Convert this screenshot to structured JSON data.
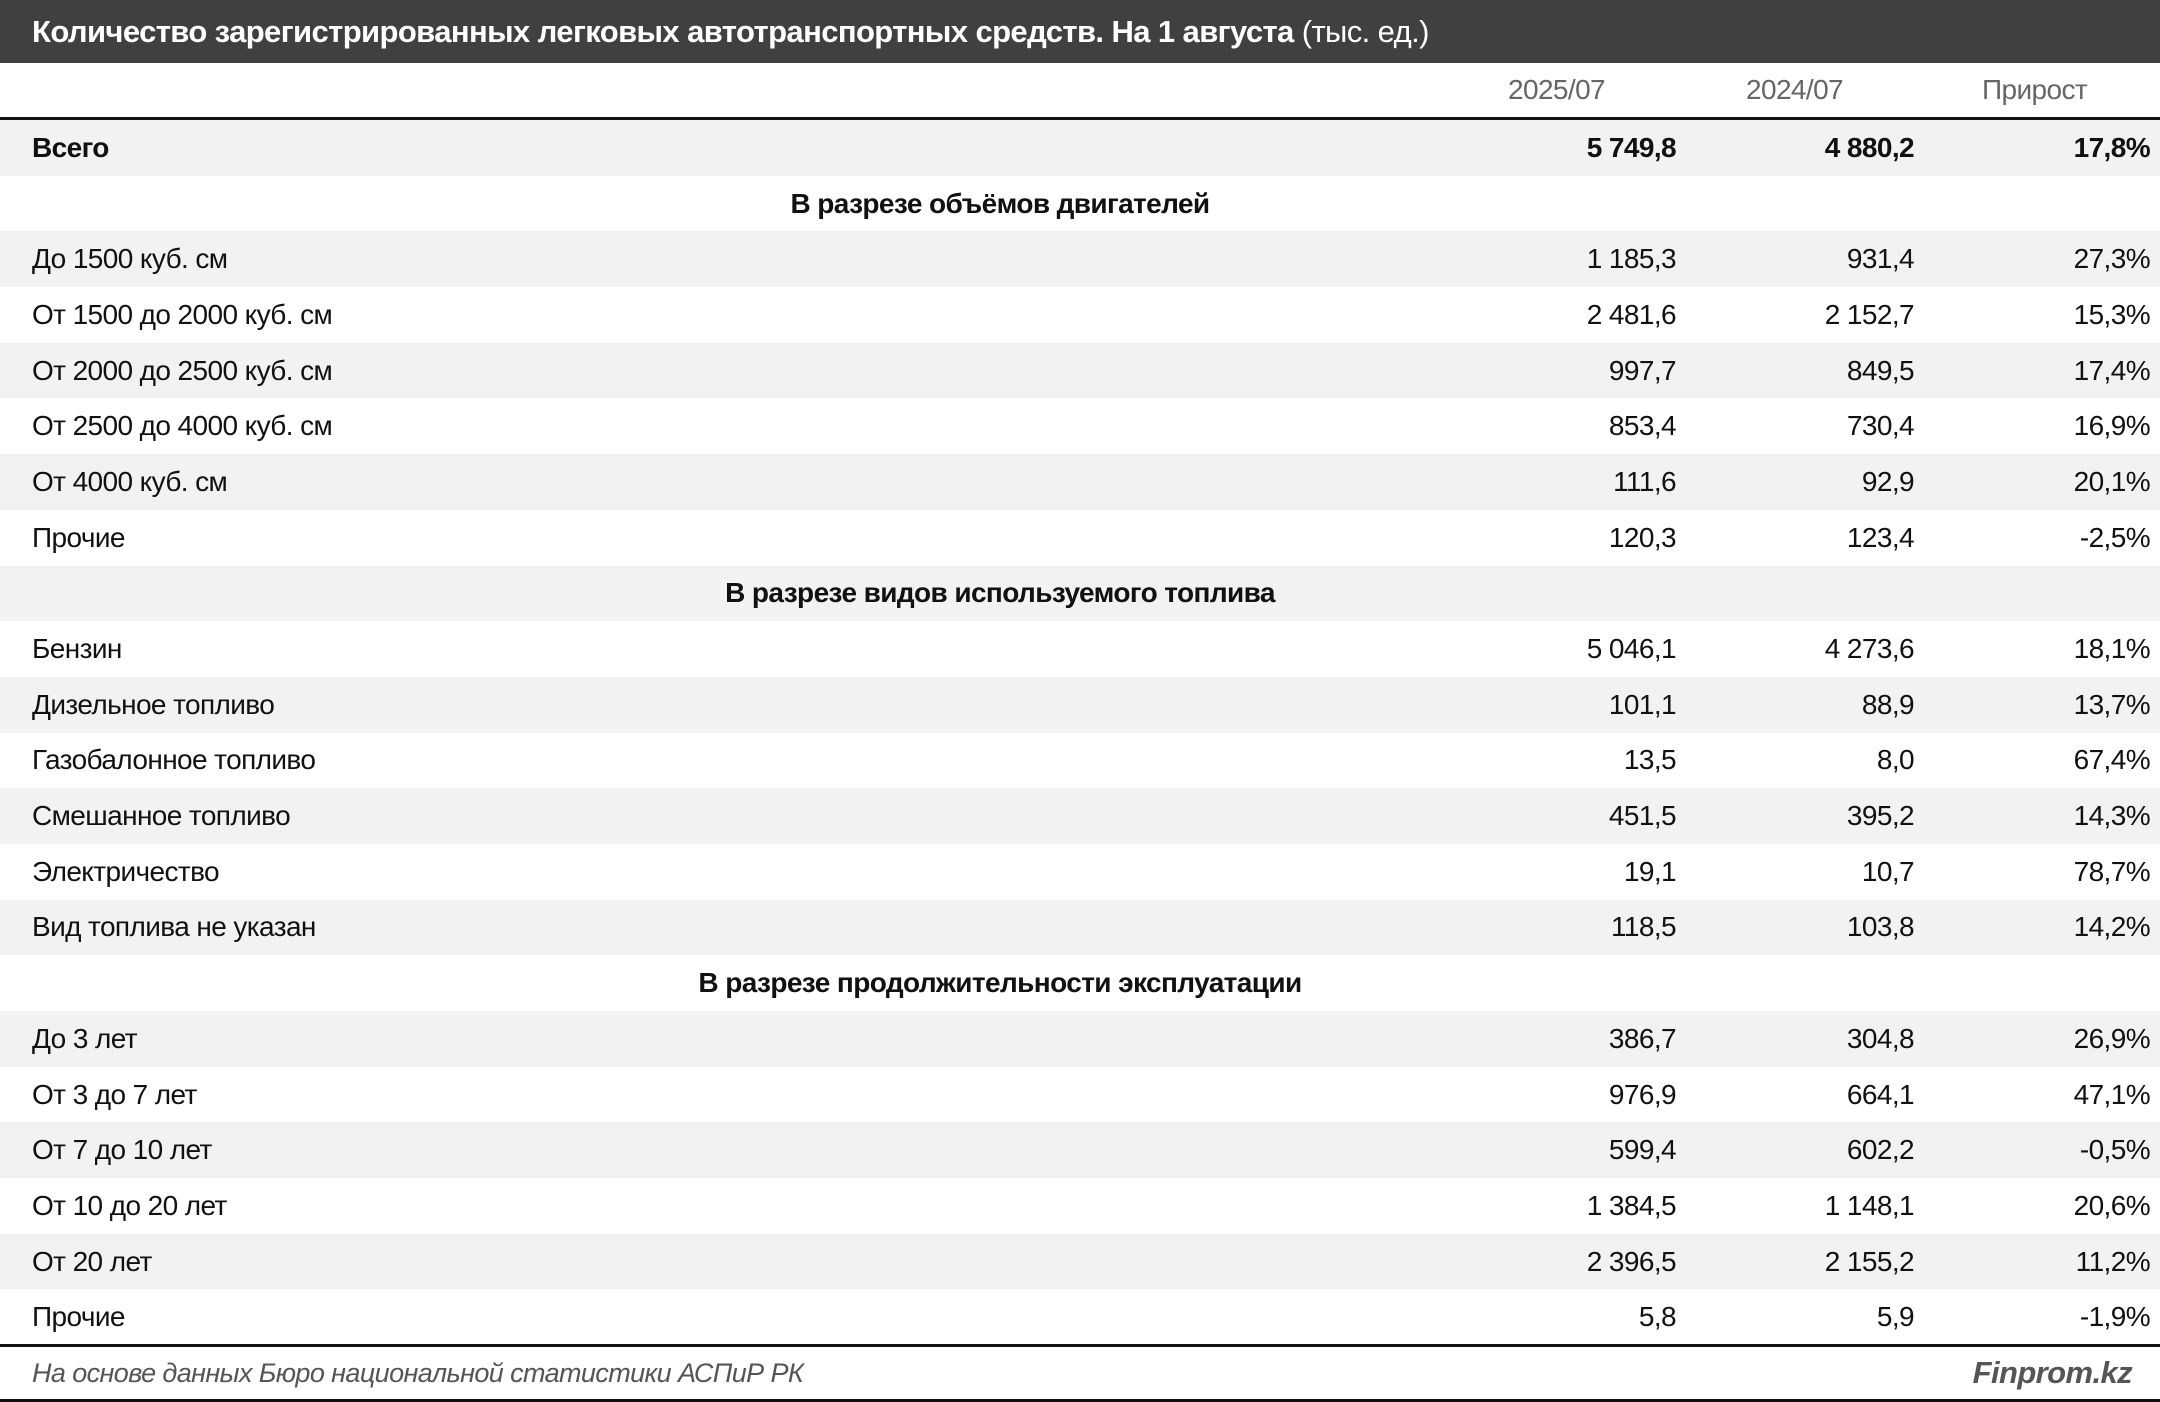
{
  "title": {
    "main": "Количество зарегистрированных легковых автотранспортных средств. На 1 августа",
    "unit": " (тыс. ед.)"
  },
  "columns": [
    "2025/07",
    "2024/07",
    "Прирост"
  ],
  "total": {
    "label": "Всего",
    "v2025": "5 749,8",
    "v2024": "4 880,2",
    "growth": "17,8%"
  },
  "sections": [
    {
      "title": "В разрезе объёмов двигателей",
      "rows": [
        {
          "label": "До 1500 куб. см",
          "v2025": "1 185,3",
          "v2024": "931,4",
          "growth": "27,3%"
        },
        {
          "label": "От 1500 до 2000 куб. см",
          "v2025": "2 481,6",
          "v2024": "2 152,7",
          "growth": "15,3%"
        },
        {
          "label": "От 2000 до 2500 куб. см",
          "v2025": "997,7",
          "v2024": "849,5",
          "growth": "17,4%"
        },
        {
          "label": "От 2500 до 4000 куб. см",
          "v2025": "853,4",
          "v2024": "730,4",
          "growth": "16,9%"
        },
        {
          "label": "От 4000 куб. см",
          "v2025": "111,6",
          "v2024": "92,9",
          "growth": "20,1%"
        },
        {
          "label": "Прочие",
          "v2025": "120,3",
          "v2024": "123,4",
          "growth": "-2,5%"
        }
      ]
    },
    {
      "title": "В разрезе видов используемого топлива",
      "rows": [
        {
          "label": "Бензин",
          "v2025": "5 046,1",
          "v2024": "4 273,6",
          "growth": "18,1%"
        },
        {
          "label": "Дизельное топливо",
          "v2025": "101,1",
          "v2024": "88,9",
          "growth": "13,7%"
        },
        {
          "label": "Газобалонное топливо",
          "v2025": "13,5",
          "v2024": "8,0",
          "growth": "67,4%"
        },
        {
          "label": "Смешанное топливо",
          "v2025": "451,5",
          "v2024": "395,2",
          "growth": "14,3%"
        },
        {
          "label": "Электричество",
          "v2025": "19,1",
          "v2024": "10,7",
          "growth": "78,7%"
        },
        {
          "label": "Вид топлива не указан",
          "v2025": "118,5",
          "v2024": "103,8",
          "growth": "14,2%"
        }
      ]
    },
    {
      "title": "В разрезе продолжительности эксплуатации",
      "rows": [
        {
          "label": "До 3 лет",
          "v2025": "386,7",
          "v2024": "304,8",
          "growth": "26,9%"
        },
        {
          "label": "От 3 до 7 лет",
          "v2025": "976,9",
          "v2024": "664,1",
          "growth": "47,1%"
        },
        {
          "label": "От 7 до 10 лет",
          "v2025": "599,4",
          "v2024": "602,2",
          "growth": "-0,5%"
        },
        {
          "label": "От 10 до 20 лет",
          "v2025": "1 384,5",
          "v2024": "1 148,1",
          "growth": "20,6%"
        },
        {
          "label": "От 20 лет",
          "v2025": "2 396,5",
          "v2024": "2 155,2",
          "growth": "11,2%"
        },
        {
          "label": "Прочие",
          "v2025": "5,8",
          "v2024": "5,9",
          "growth": "-1,9%"
        }
      ]
    }
  ],
  "footer": {
    "source": "На основе данных Бюро национальной статистики АСПиР РК",
    "brand": "Finprom.kz"
  },
  "colors": {
    "title_bg": "#404040",
    "stripe": "#f2f2f2",
    "border": "#111111"
  }
}
